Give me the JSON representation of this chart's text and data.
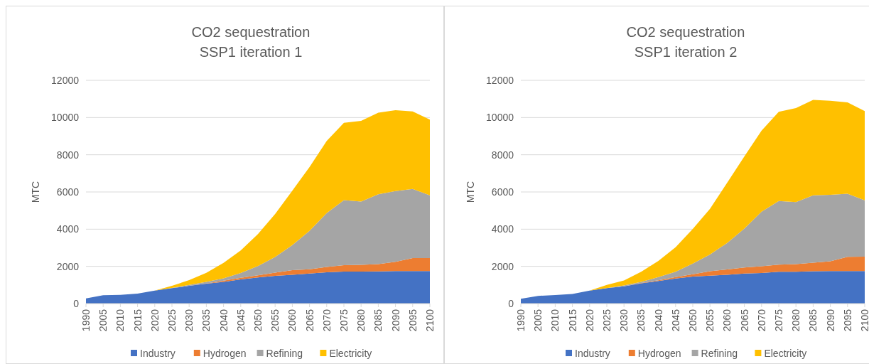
{
  "chart_data": [
    {
      "type": "area",
      "title": "CO2 sequestration\nSSP1 iteration 1",
      "ylabel": "MTC",
      "stacked": true,
      "grid": "y",
      "legend": "bottom",
      "categories": [
        "1990",
        "2005",
        "2010",
        "2015",
        "2020",
        "2025",
        "2030",
        "2035",
        "2040",
        "2045",
        "2050",
        "2055",
        "2060",
        "2065",
        "2070",
        "2075",
        "2080",
        "2085",
        "2090",
        "2095",
        "2100"
      ],
      "ylim": [
        0,
        12000
      ],
      "yticks": [
        0,
        2000,
        4000,
        6000,
        8000,
        10000,
        12000
      ],
      "series": [
        {
          "name": "Industry",
          "color": "#4472c4",
          "values": [
            280,
            445,
            470,
            535,
            700,
            830,
            955,
            1070,
            1170,
            1300,
            1400,
            1490,
            1550,
            1615,
            1680,
            1720,
            1720,
            1730,
            1745,
            1745,
            1745
          ]
        },
        {
          "name": "Hydrogen",
          "color": "#ed7d31",
          "values": [
            0,
            0,
            0,
            0,
            0,
            0,
            0,
            10,
            65,
            85,
            115,
            175,
            245,
            230,
            290,
            340,
            365,
            395,
            505,
            700,
            700
          ]
        },
        {
          "name": "Refining",
          "color": "#a5a5a5",
          "values": [
            0,
            0,
            0,
            0,
            0,
            10,
            50,
            90,
            125,
            255,
            505,
            840,
            1345,
            2060,
            2890,
            3500,
            3400,
            3755,
            3795,
            3715,
            3370
          ]
        },
        {
          "name": "Electricity",
          "color": "#ffc000",
          "values": [
            0,
            0,
            0,
            0,
            0,
            115,
            255,
            485,
            830,
            1220,
            1720,
            2315,
            2930,
            3435,
            3880,
            4160,
            4335,
            4385,
            4350,
            4170,
            4070
          ]
        }
      ]
    },
    {
      "type": "area",
      "title": "CO2 sequestration\nSSP1 iteration 2",
      "ylabel": "MTC",
      "stacked": true,
      "grid": "y",
      "legend": "bottom",
      "categories": [
        "1990",
        "2005",
        "2010",
        "2015",
        "2020",
        "2025",
        "2030",
        "2035",
        "2040",
        "2045",
        "2050",
        "2055",
        "2060",
        "2065",
        "2070",
        "2075",
        "2080",
        "2085",
        "2090",
        "2095",
        "2100"
      ],
      "ylim": [
        0,
        12000
      ],
      "yticks": [
        0,
        2000,
        4000,
        6000,
        8000,
        10000,
        12000
      ],
      "series": [
        {
          "name": "Industry",
          "color": "#4472c4",
          "values": [
            260,
            415,
            455,
            515,
            700,
            830,
            930,
            1090,
            1215,
            1345,
            1450,
            1500,
            1550,
            1615,
            1640,
            1710,
            1710,
            1735,
            1745,
            1745,
            1745
          ]
        },
        {
          "name": "Hydrogen",
          "color": "#ed7d31",
          "values": [
            0,
            0,
            0,
            0,
            0,
            0,
            0,
            20,
            40,
            80,
            130,
            235,
            285,
            325,
            365,
            385,
            410,
            465,
            530,
            765,
            780
          ]
        },
        {
          "name": "Refining",
          "color": "#a5a5a5",
          "values": [
            0,
            0,
            0,
            0,
            0,
            0,
            40,
            55,
            170,
            285,
            570,
            905,
            1425,
            2095,
            2935,
            3415,
            3340,
            3620,
            3575,
            3390,
            3025
          ]
        },
        {
          "name": "Electricity",
          "color": "#ffc000",
          "values": [
            0,
            0,
            0,
            0,
            0,
            170,
            270,
            545,
            865,
            1315,
            1860,
            2455,
            3235,
            3880,
            4360,
            4800,
            5045,
            5125,
            5055,
            4915,
            4800
          ]
        }
      ]
    }
  ]
}
